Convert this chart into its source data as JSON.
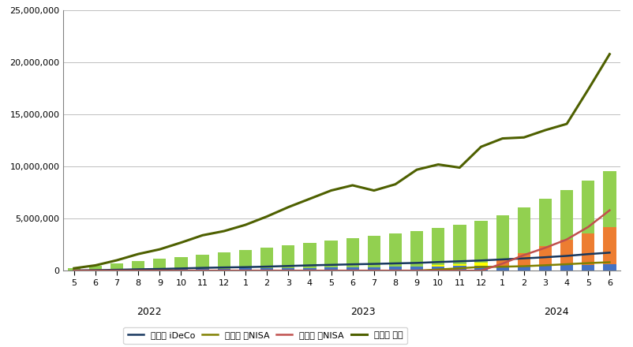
{
  "categories": [
    "5",
    "6",
    "7",
    "8",
    "9",
    "10",
    "11",
    "12",
    "1",
    "2",
    "3",
    "4",
    "5",
    "6",
    "7",
    "8",
    "9",
    "10",
    "11",
    "12",
    "1",
    "2",
    "3",
    "4",
    "5",
    "6"
  ],
  "year_info": [
    {
      "label": "2022",
      "start": 0,
      "end": 7
    },
    {
      "label": "2023",
      "start": 8,
      "end": 19
    },
    {
      "label": "2024",
      "start": 20,
      "end": 25
    }
  ],
  "invest_ideco": [
    23000,
    46000,
    69000,
    92000,
    115000,
    138000,
    161000,
    184000,
    207000,
    230000,
    253000,
    276000,
    299000,
    322000,
    345000,
    368000,
    391000,
    414000,
    437000,
    460000,
    483000,
    506000,
    529000,
    552000,
    575000,
    598000
  ],
  "invest_kyunisa": [
    0,
    0,
    0,
    0,
    0,
    0,
    0,
    0,
    0,
    0,
    0,
    0,
    0,
    0,
    0,
    0,
    0,
    100000,
    200000,
    300000,
    0,
    0,
    0,
    0,
    0,
    0
  ],
  "invest_shinnisa": [
    0,
    0,
    0,
    0,
    0,
    0,
    0,
    0,
    0,
    0,
    0,
    0,
    0,
    0,
    0,
    0,
    0,
    0,
    0,
    0,
    600000,
    1200000,
    1800000,
    2400000,
    3000000,
    3600000
  ],
  "invest_tokutei": [
    200000,
    400000,
    600000,
    800000,
    1000000,
    1200000,
    1400000,
    1600000,
    1800000,
    2000000,
    2200000,
    2400000,
    2600000,
    2800000,
    3000000,
    3200000,
    3400000,
    3600000,
    3800000,
    4000000,
    4200000,
    4400000,
    4600000,
    4800000,
    5100000,
    5400000
  ],
  "eval_ideco": [
    24000,
    50000,
    85000,
    130000,
    165000,
    215000,
    270000,
    310000,
    340000,
    390000,
    450000,
    510000,
    560000,
    610000,
    650000,
    700000,
    745000,
    830000,
    900000,
    980000,
    1080000,
    1180000,
    1290000,
    1420000,
    1590000,
    1730000
  ],
  "eval_kyunisa": [
    0,
    0,
    0,
    0,
    0,
    0,
    0,
    0,
    0,
    0,
    0,
    0,
    0,
    0,
    0,
    0,
    0,
    110000,
    230000,
    360000,
    380000,
    430000,
    520000,
    620000,
    730000,
    810000
  ],
  "eval_shinnisa": [
    0,
    0,
    0,
    0,
    0,
    0,
    0,
    0,
    0,
    0,
    0,
    0,
    0,
    0,
    0,
    0,
    0,
    0,
    0,
    0,
    680000,
    1500000,
    2200000,
    3000000,
    4200000,
    5800000
  ],
  "eval_tokutei": [
    230000,
    510000,
    1000000,
    1600000,
    2050000,
    2700000,
    3400000,
    3800000,
    4400000,
    5200000,
    6100000,
    6900000,
    7700000,
    8200000,
    7700000,
    8300000,
    9700000,
    10200000,
    9900000,
    11900000,
    12700000,
    12800000,
    13500000,
    14100000,
    17400000,
    20800000
  ],
  "bar_color_ideco": "#4472c4",
  "bar_color_kyunisa": "#ffff00",
  "bar_color_shinnisa": "#ed7d31",
  "bar_color_tokutei": "#92d050",
  "line_color_ideco": "#17375e",
  "line_color_kyunisa": "#808000",
  "line_color_shinnisa": "#c0504d",
  "line_color_tokutei": "#4e6000",
  "ylim": [
    0,
    25000000
  ],
  "yticks": [
    0,
    5000000,
    10000000,
    15000000,
    20000000,
    25000000
  ],
  "background_color": "#ffffff",
  "grid_color": "#bfbfbf"
}
